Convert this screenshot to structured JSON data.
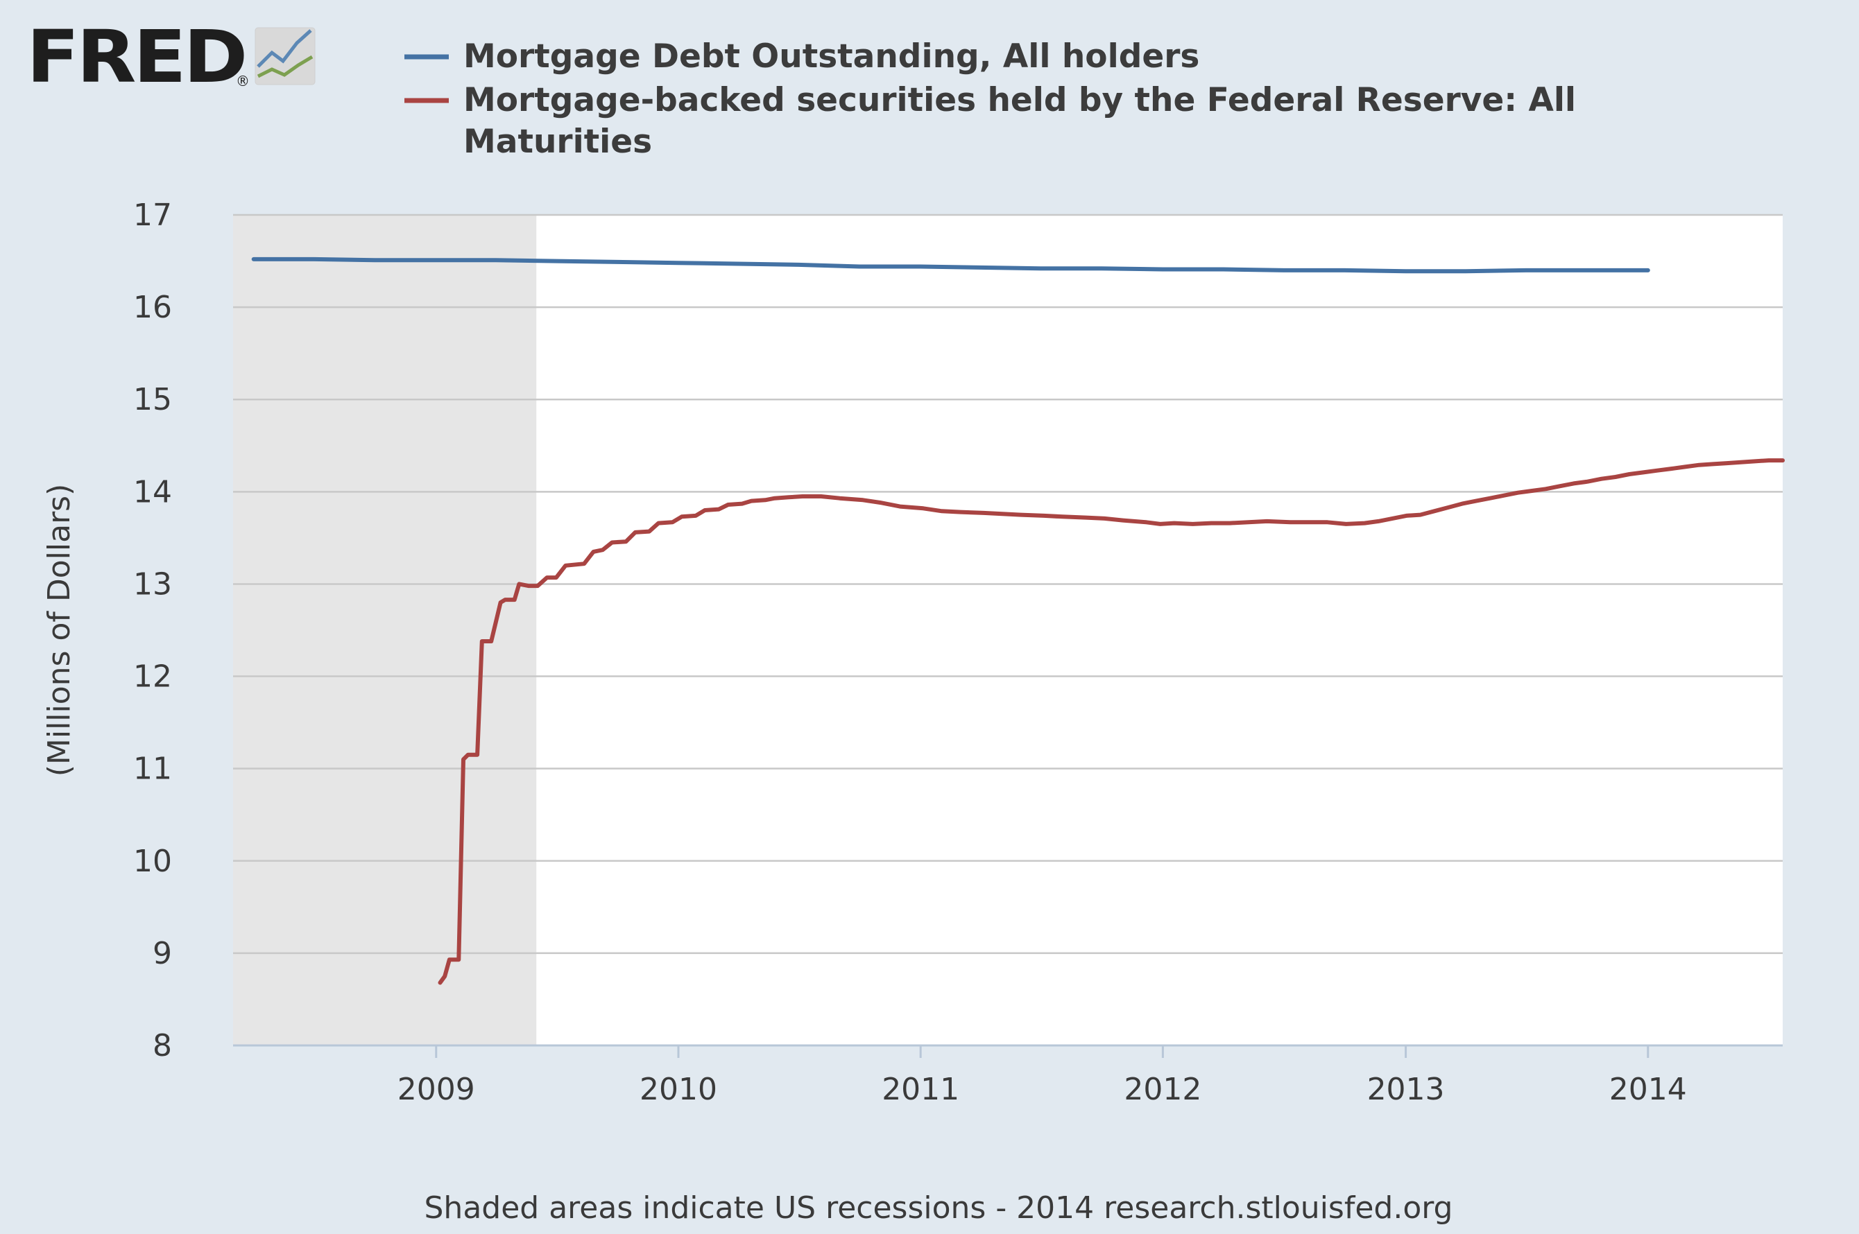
{
  "logo": {
    "text": "FRED",
    "registered": "®"
  },
  "colors": {
    "background": "#e1e9f0",
    "plot_background": "#ffffff",
    "recession_shade": "#e6e6e6",
    "gridline": "#c8c8c8",
    "series_blue": "#4472a4",
    "series_red": "#a94442"
  },
  "footer": "Shaded areas indicate US recessions - 2014 research.stlouisfed.org",
  "chart_data": {
    "type": "line",
    "title": "",
    "xlabel": "",
    "ylabel": "(Millions of Dollars)",
    "ylim": [
      8,
      17
    ],
    "y_ticks": [
      "8",
      "9",
      "10",
      "11",
      "12",
      "13",
      "14",
      "15",
      "16",
      "17"
    ],
    "xlim": [
      "2008-03-01",
      "2014-07-23"
    ],
    "x_ticks": [
      "2009",
      "2010",
      "2011",
      "2012",
      "2013",
      "2014"
    ],
    "grid": true,
    "legend_position": "top",
    "recession_shading": [
      {
        "start": "2008-03-01",
        "end": "2009-06-01"
      }
    ],
    "series": [
      {
        "name": "Mortgage Debt Outstanding, All holders",
        "color": "#4472a4",
        "points": [
          [
            "2008-04-01",
            16.52
          ],
          [
            "2008-07-01",
            16.52
          ],
          [
            "2008-10-01",
            16.51
          ],
          [
            "2009-01-01",
            16.51
          ],
          [
            "2009-04-01",
            16.51
          ],
          [
            "2009-07-01",
            16.5
          ],
          [
            "2009-10-01",
            16.49
          ],
          [
            "2010-01-01",
            16.48
          ],
          [
            "2010-04-01",
            16.47
          ],
          [
            "2010-07-01",
            16.46
          ],
          [
            "2010-10-01",
            16.44
          ],
          [
            "2011-01-01",
            16.44
          ],
          [
            "2011-04-01",
            16.43
          ],
          [
            "2011-07-01",
            16.42
          ],
          [
            "2011-10-01",
            16.42
          ],
          [
            "2012-01-01",
            16.41
          ],
          [
            "2012-04-01",
            16.41
          ],
          [
            "2012-07-01",
            16.4
          ],
          [
            "2012-10-01",
            16.4
          ],
          [
            "2013-01-01",
            16.39
          ],
          [
            "2013-04-01",
            16.39
          ],
          [
            "2013-07-01",
            16.4
          ],
          [
            "2013-10-01",
            16.4
          ],
          [
            "2014-01-01",
            16.4
          ]
        ]
      },
      {
        "name": "Mortgage-backed securities held by the Federal Reserve: All Maturities",
        "color": "#a94442",
        "points": [
          [
            "2009-01-07",
            8.68
          ],
          [
            "2009-01-14",
            8.75
          ],
          [
            "2009-01-21",
            8.93
          ],
          [
            "2009-02-04",
            8.93
          ],
          [
            "2009-02-11",
            11.1
          ],
          [
            "2009-02-18",
            11.15
          ],
          [
            "2009-03-04",
            11.15
          ],
          [
            "2009-03-11",
            12.38
          ],
          [
            "2009-03-25",
            12.38
          ],
          [
            "2009-04-08",
            12.8
          ],
          [
            "2009-04-15",
            12.83
          ],
          [
            "2009-04-29",
            12.83
          ],
          [
            "2009-05-06",
            13.0
          ],
          [
            "2009-05-20",
            12.98
          ],
          [
            "2009-06-03",
            12.98
          ],
          [
            "2009-06-17",
            13.07
          ],
          [
            "2009-07-01",
            13.07
          ],
          [
            "2009-07-15",
            13.2
          ],
          [
            "2009-08-12",
            13.22
          ],
          [
            "2009-08-26",
            13.35
          ],
          [
            "2009-09-09",
            13.37
          ],
          [
            "2009-09-23",
            13.45
          ],
          [
            "2009-10-14",
            13.46
          ],
          [
            "2009-10-28",
            13.56
          ],
          [
            "2009-11-18",
            13.57
          ],
          [
            "2009-12-02",
            13.66
          ],
          [
            "2009-12-23",
            13.67
          ],
          [
            "2010-01-06",
            13.73
          ],
          [
            "2010-01-27",
            13.74
          ],
          [
            "2010-02-10",
            13.8
          ],
          [
            "2010-03-03",
            13.81
          ],
          [
            "2010-03-17",
            13.86
          ],
          [
            "2010-04-07",
            13.87
          ],
          [
            "2010-04-21",
            13.9
          ],
          [
            "2010-05-12",
            13.91
          ],
          [
            "2010-05-26",
            13.93
          ],
          [
            "2010-06-16",
            13.94
          ],
          [
            "2010-07-07",
            13.95
          ],
          [
            "2010-08-04",
            13.95
          ],
          [
            "2010-09-01",
            13.93
          ],
          [
            "2010-10-06",
            13.91
          ],
          [
            "2010-11-03",
            13.88
          ],
          [
            "2010-12-01",
            13.84
          ],
          [
            "2011-01-05",
            13.82
          ],
          [
            "2011-02-02",
            13.79
          ],
          [
            "2011-03-02",
            13.78
          ],
          [
            "2011-04-06",
            13.77
          ],
          [
            "2011-05-04",
            13.76
          ],
          [
            "2011-06-01",
            13.75
          ],
          [
            "2011-07-06",
            13.74
          ],
          [
            "2011-08-03",
            13.73
          ],
          [
            "2011-09-07",
            13.72
          ],
          [
            "2011-10-05",
            13.71
          ],
          [
            "2011-11-02",
            13.69
          ],
          [
            "2011-12-07",
            13.67
          ],
          [
            "2011-12-28",
            13.65
          ],
          [
            "2012-01-18",
            13.66
          ],
          [
            "2012-02-15",
            13.65
          ],
          [
            "2012-03-14",
            13.66
          ],
          [
            "2012-04-11",
            13.66
          ],
          [
            "2012-05-09",
            13.67
          ],
          [
            "2012-06-06",
            13.68
          ],
          [
            "2012-07-11",
            13.67
          ],
          [
            "2012-08-08",
            13.67
          ],
          [
            "2012-09-05",
            13.67
          ],
          [
            "2012-10-03",
            13.65
          ],
          [
            "2012-10-31",
            13.66
          ],
          [
            "2012-11-21",
            13.68
          ],
          [
            "2012-12-12",
            13.71
          ],
          [
            "2013-01-02",
            13.74
          ],
          [
            "2013-01-23",
            13.75
          ],
          [
            "2013-02-13",
            13.79
          ],
          [
            "2013-03-06",
            13.83
          ],
          [
            "2013-03-27",
            13.87
          ],
          [
            "2013-04-17",
            13.9
          ],
          [
            "2013-05-08",
            13.93
          ],
          [
            "2013-05-29",
            13.96
          ],
          [
            "2013-06-19",
            13.99
          ],
          [
            "2013-07-10",
            14.01
          ],
          [
            "2013-07-31",
            14.03
          ],
          [
            "2013-08-21",
            14.06
          ],
          [
            "2013-09-11",
            14.09
          ],
          [
            "2013-10-02",
            14.11
          ],
          [
            "2013-10-23",
            14.14
          ],
          [
            "2013-11-13",
            14.16
          ],
          [
            "2013-12-04",
            14.19
          ],
          [
            "2013-12-25",
            14.21
          ],
          [
            "2014-01-15",
            14.23
          ],
          [
            "2014-02-05",
            14.25
          ],
          [
            "2014-02-26",
            14.27
          ],
          [
            "2014-03-19",
            14.29
          ],
          [
            "2014-04-09",
            14.3
          ],
          [
            "2014-04-30",
            14.31
          ],
          [
            "2014-05-21",
            14.32
          ],
          [
            "2014-06-11",
            14.33
          ],
          [
            "2014-07-02",
            14.34
          ],
          [
            "2014-07-23",
            14.34
          ]
        ]
      }
    ]
  }
}
